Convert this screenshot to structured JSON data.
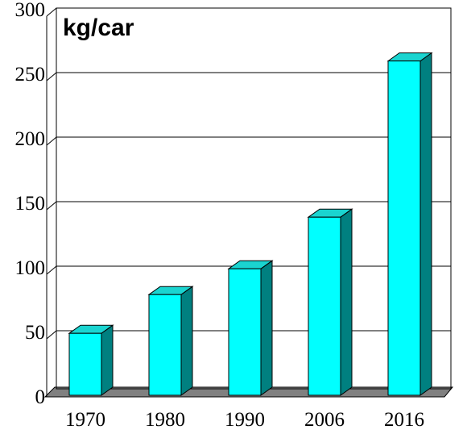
{
  "chart_data": {
    "type": "bar",
    "title": "kg/car",
    "xlabel": "",
    "ylabel": "",
    "categories": [
      "1970",
      "1980",
      "1990",
      "2006",
      "2016"
    ],
    "values": [
      48,
      78,
      98,
      138,
      259
    ],
    "ylim": [
      0,
      300
    ],
    "yticks": [
      "0",
      "50",
      "100",
      "150",
      "200",
      "250",
      "300"
    ],
    "grid": true,
    "style": "3d",
    "colors": {
      "bar_front": "#00ffff",
      "bar_top": "#1ad4d0",
      "bar_side": "#008080",
      "floor": "#808080",
      "grid": "#000000"
    }
  }
}
